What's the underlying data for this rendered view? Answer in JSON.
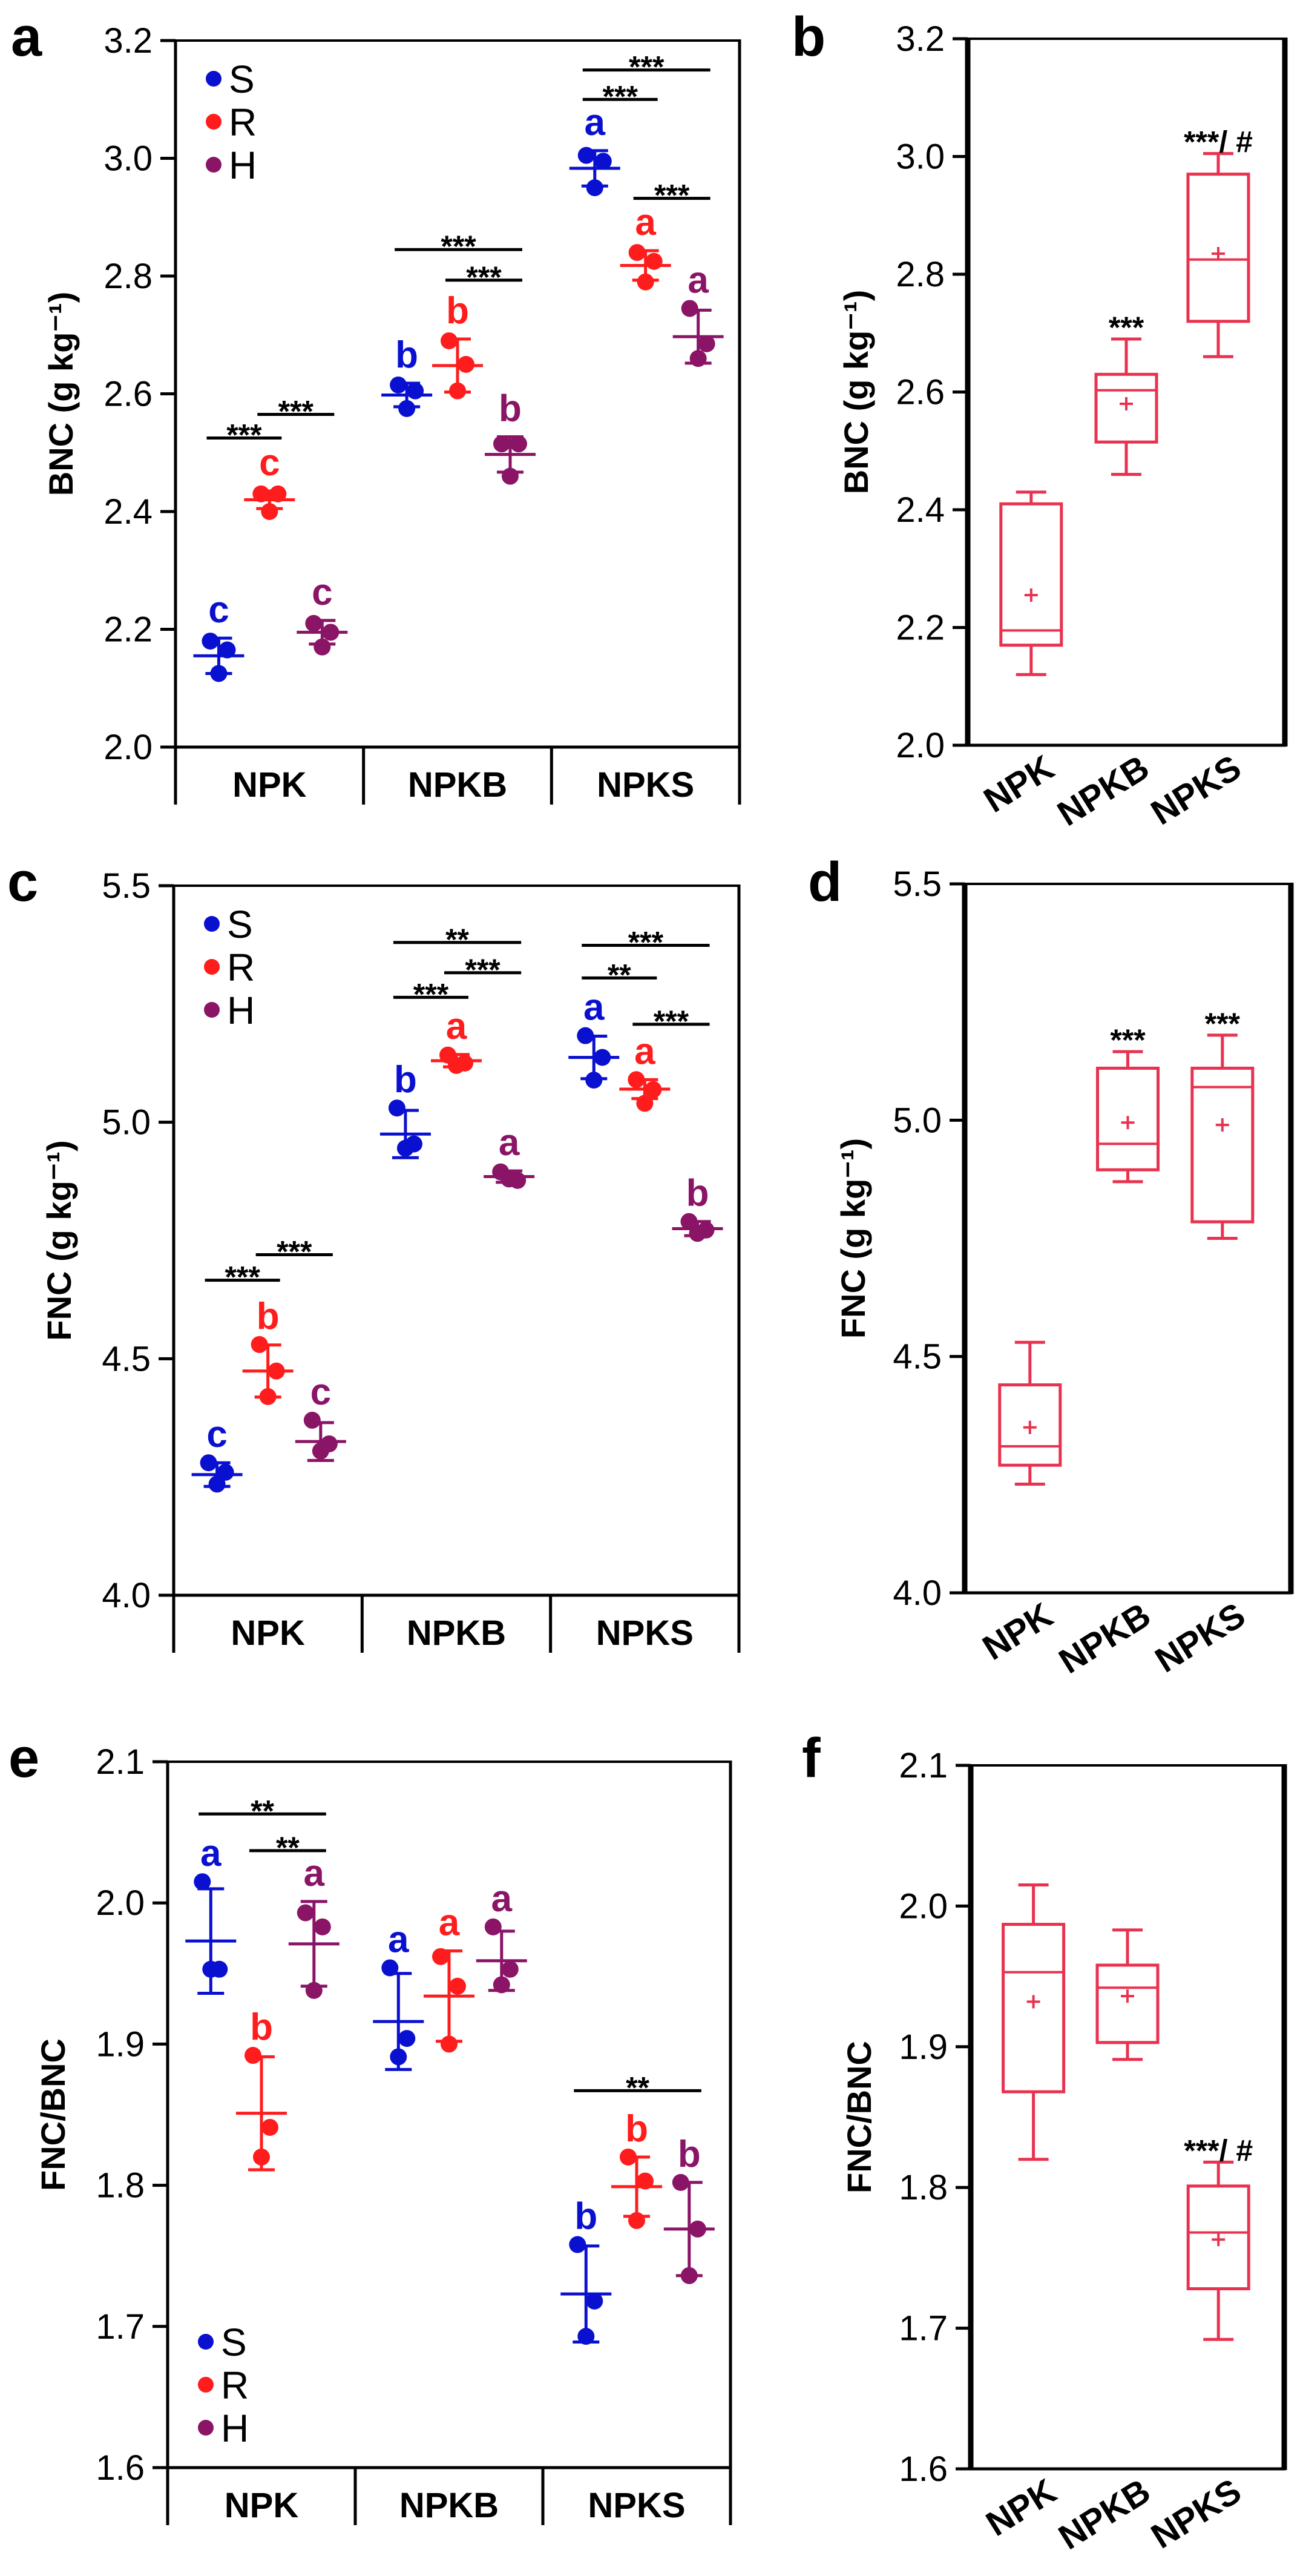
{
  "colors": {
    "S": "#0a10cf",
    "R": "#ff1c1c",
    "H": "#8a1466",
    "box": "#e8324f",
    "axis": "#000000"
  },
  "chart_data": [
    {
      "panel": "a",
      "type": "scatter",
      "ylabel": "BNC (g kg⁻¹)",
      "ylim": [
        2.0,
        3.2
      ],
      "yticks": [
        "2.0",
        "2.2",
        "2.4",
        "2.6",
        "2.8",
        "3.0",
        "3.2"
      ],
      "categories": [
        "NPK",
        "NPKB",
        "NPKS"
      ],
      "legend": {
        "entries": [
          "S",
          "R",
          "H"
        ],
        "placement": "top-left"
      },
      "series": [
        {
          "name": "S",
          "points": [
            [
              2.18,
              2.165,
              2.125
            ],
            [
              2.615,
              2.605,
              2.575
            ],
            [
              3.005,
              2.995,
              2.95
            ]
          ],
          "mean": [
            2.155,
            2.598,
            2.983
          ],
          "sd": [
            0.03,
            0.02,
            0.03
          ],
          "letters": [
            "c",
            "b",
            "a"
          ]
        },
        {
          "name": "R",
          "points": [
            [
              2.43,
              2.43,
              2.4
            ],
            [
              2.69,
              2.65,
              2.605
            ],
            [
              2.84,
              2.825,
              2.79
            ]
          ],
          "mean": [
            2.42,
            2.648,
            2.818
          ],
          "sd": [
            0.015,
            0.045,
            0.025
          ],
          "letters": [
            "c",
            "b",
            "a"
          ]
        },
        {
          "name": "H",
          "points": [
            [
              2.21,
              2.195,
              2.17
            ],
            [
              2.515,
              2.515,
              2.46
            ],
            [
              2.745,
              2.685,
              2.66
            ]
          ],
          "mean": [
            2.195,
            2.497,
            2.697
          ],
          "sd": [
            0.02,
            0.03,
            0.045
          ],
          "letters": [
            "c",
            "b",
            "a"
          ]
        }
      ],
      "comparisons": [
        {
          "category": 0,
          "from": "S",
          "to": "R",
          "label": "***",
          "y": 2.525
        },
        {
          "category": 0,
          "from": "R",
          "to": "H",
          "label": "***",
          "y": 2.565
        },
        {
          "category": 1,
          "from": "S",
          "to": "H",
          "label": "***",
          "y": 2.845
        },
        {
          "category": 1,
          "from": "R",
          "to": "H",
          "label": "***",
          "y": 2.793
        },
        {
          "category": 2,
          "from": "S",
          "to": "H",
          "label": "***",
          "y": 3.15
        },
        {
          "category": 2,
          "from": "S",
          "to": "R",
          "label": "***",
          "y": 3.1
        },
        {
          "category": 2,
          "from": "R",
          "to": "H",
          "label": "***",
          "y": 2.932
        }
      ]
    },
    {
      "panel": "b",
      "type": "box",
      "ylabel": "BNC (g kg⁻¹)",
      "ylim": [
        2.0,
        3.2
      ],
      "yticks": [
        "2.0",
        "2.2",
        "2.4",
        "2.6",
        "2.8",
        "3.0",
        "3.2"
      ],
      "categories": [
        "NPK",
        "NPKB",
        "NPKS"
      ],
      "boxes": [
        {
          "min": 2.12,
          "q1": 2.17,
          "median": 2.195,
          "q3": 2.41,
          "max": 2.43,
          "mean": 2.255,
          "annotation": ""
        },
        {
          "min": 2.46,
          "q1": 2.515,
          "median": 2.603,
          "q3": 2.63,
          "max": 2.69,
          "mean": 2.58,
          "annotation": "***"
        },
        {
          "min": 2.66,
          "q1": 2.72,
          "median": 2.825,
          "q3": 2.97,
          "max": 3.005,
          "mean": 2.835,
          "annotation": "***/ #"
        }
      ]
    },
    {
      "panel": "c",
      "type": "scatter",
      "ylabel": "FNC (g kg⁻¹)",
      "ylim": [
        4.0,
        5.5
      ],
      "yticks": [
        "4.0",
        "4.5",
        "5.0",
        "5.5"
      ],
      "categories": [
        "NPK",
        "NPKB",
        "NPKS"
      ],
      "legend": {
        "entries": [
          "S",
          "R",
          "H"
        ],
        "placement": "top-left"
      },
      "series": [
        {
          "name": "S",
          "points": [
            [
              4.28,
              4.26,
              4.235
            ],
            [
              5.03,
              4.954,
              4.945
            ],
            [
              5.183,
              5.137,
              5.089
            ]
          ],
          "mean": [
            4.255,
            4.975,
            5.137
          ],
          "sd": [
            0.025,
            0.05,
            0.045
          ],
          "letters": [
            "c",
            "b",
            "a"
          ]
        },
        {
          "name": "R",
          "points": [
            [
              4.53,
              4.474,
              4.42
            ],
            [
              5.142,
              5.125,
              5.12
            ],
            [
              5.09,
              5.069,
              5.04
            ]
          ],
          "mean": [
            4.474,
            5.13,
            5.07
          ],
          "sd": [
            0.055,
            0.013,
            0.02
          ],
          "letters": [
            "b",
            "a",
            "a"
          ]
        },
        {
          "name": "H",
          "points": [
            [
              4.37,
              4.32,
              4.305
            ],
            [
              4.895,
              4.877,
              4.88
            ],
            [
              4.79,
              4.772,
              4.765
            ]
          ],
          "mean": [
            4.325,
            4.885,
            4.775
          ],
          "sd": [
            0.04,
            0.012,
            0.015
          ],
          "letters": [
            "c",
            "a",
            "b"
          ]
        }
      ],
      "comparisons": [
        {
          "category": 0,
          "from": "S",
          "to": "R",
          "label": "***",
          "y": 4.666
        },
        {
          "category": 0,
          "from": "R",
          "to": "H",
          "label": "***",
          "y": 4.72
        },
        {
          "category": 1,
          "from": "S",
          "to": "H",
          "label": "**",
          "y": 5.38
        },
        {
          "category": 1,
          "from": "R",
          "to": "H",
          "label": "***",
          "y": 5.316
        },
        {
          "category": 1,
          "from": "S",
          "to": "R",
          "label": "***",
          "y": 5.264
        },
        {
          "category": 2,
          "from": "S",
          "to": "H",
          "label": "***",
          "y": 5.374
        },
        {
          "category": 2,
          "from": "S",
          "to": "R",
          "label": "**",
          "y": 5.305
        },
        {
          "category": 2,
          "from": "R",
          "to": "H",
          "label": "***",
          "y": 5.207
        }
      ]
    },
    {
      "panel": "d",
      "type": "box",
      "ylabel": "FNC (g kg⁻¹)",
      "ylim": [
        4.0,
        5.5
      ],
      "yticks": [
        "4.0",
        "4.5",
        "5.0",
        "5.5"
      ],
      "categories": [
        "NPK",
        "NPKB",
        "NPKS"
      ],
      "boxes": [
        {
          "min": 4.23,
          "q1": 4.27,
          "median": 4.31,
          "q3": 4.44,
          "max": 4.53,
          "mean": 4.35,
          "annotation": ""
        },
        {
          "min": 4.87,
          "q1": 4.895,
          "median": 4.95,
          "q3": 5.11,
          "max": 5.145,
          "mean": 4.995,
          "annotation": "***"
        },
        {
          "min": 4.75,
          "q1": 4.785,
          "median": 5.07,
          "q3": 5.11,
          "max": 5.18,
          "mean": 4.99,
          "annotation": "***"
        }
      ]
    },
    {
      "panel": "e",
      "type": "scatter",
      "ylabel": "FNC/BNC",
      "ylim": [
        1.6,
        2.1
      ],
      "yticks": [
        "1.6",
        "1.7",
        "1.8",
        "1.9",
        "2.0",
        "2.1"
      ],
      "categories": [
        "NPK",
        "NPKB",
        "NPKS"
      ],
      "legend": {
        "entries": [
          "S",
          "R",
          "H"
        ],
        "placement": "bottom-left"
      },
      "series": [
        {
          "name": "S",
          "points": [
            [
              2.015,
              1.953,
              1.953
            ],
            [
              1.954,
              1.904,
              1.891
            ],
            [
              1.758,
              1.718,
              1.693
            ]
          ],
          "mean": [
            1.973,
            1.916,
            1.723
          ],
          "sd": [
            0.037,
            0.034,
            0.034
          ],
          "letters": [
            "a",
            "a",
            "b"
          ]
        },
        {
          "name": "R",
          "points": [
            [
              1.892,
              1.841,
              1.82
            ],
            [
              1.962,
              1.941,
              1.9
            ],
            [
              1.82,
              1.803,
              1.775
            ]
          ],
          "mean": [
            1.851,
            1.934,
            1.799
          ],
          "sd": [
            0.04,
            0.032,
            0.021
          ],
          "letters": [
            "b",
            "a",
            "b"
          ]
        },
        {
          "name": "H",
          "points": [
            [
              1.993,
              1.983,
              1.938
            ],
            [
              1.983,
              1.953,
              1.942
            ],
            [
              1.802,
              1.769,
              1.736
            ]
          ],
          "mean": [
            1.971,
            1.959,
            1.769
          ],
          "sd": [
            0.03,
            0.021,
            0.033
          ],
          "letters": [
            "a",
            "a",
            "b"
          ]
        }
      ],
      "comparisons": [
        {
          "category": 0,
          "from": "S",
          "to": "H",
          "label": "**",
          "y": 2.063
        },
        {
          "category": 0,
          "from": "R",
          "to": "H",
          "label": "**",
          "y": 2.037
        },
        {
          "category": 2,
          "from": "S",
          "to": "H",
          "label": "**",
          "y": 1.867
        }
      ]
    },
    {
      "panel": "f",
      "type": "box",
      "ylabel": "FNC/BNC",
      "ylim": [
        1.6,
        2.1
      ],
      "yticks": [
        "1.6",
        "1.7",
        "1.8",
        "1.9",
        "2.0",
        "2.1"
      ],
      "categories": [
        "NPK",
        "NPKB",
        "NPKS"
      ],
      "boxes": [
        {
          "min": 1.82,
          "q1": 1.868,
          "median": 1.953,
          "q3": 1.987,
          "max": 2.015,
          "mean": 1.932,
          "annotation": ""
        },
        {
          "min": 1.891,
          "q1": 1.903,
          "median": 1.942,
          "q3": 1.958,
          "max": 1.983,
          "mean": 1.936,
          "annotation": ""
        },
        {
          "min": 1.692,
          "q1": 1.728,
          "median": 1.768,
          "q3": 1.801,
          "max": 1.818,
          "mean": 1.763,
          "annotation": "***/ #"
        }
      ]
    }
  ]
}
